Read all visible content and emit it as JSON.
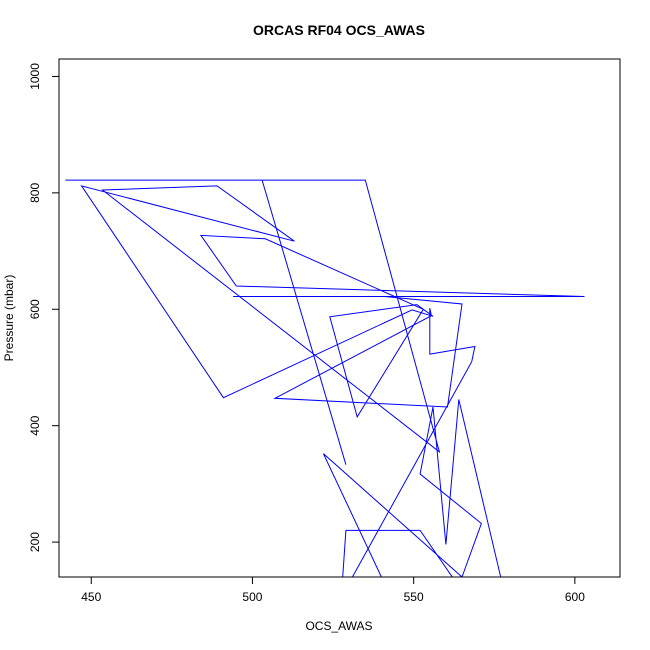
{
  "chart_data": {
    "type": "line",
    "title": "ORCAS RF04 OCS_AWAS",
    "xlabel": "OCS_AWAS",
    "ylabel": "Pressure (mbar)",
    "xlim": [
      440,
      614
    ],
    "ylim": [
      1030,
      140
    ],
    "y_reversed": true,
    "x_ticks": [
      450,
      500,
      550,
      600
    ],
    "y_ticks": [
      200,
      400,
      600,
      800,
      1000
    ],
    "grid": false,
    "line_color": "#0000ff",
    "marker": "open-circle",
    "x": [
      528.0,
      529.0,
      552.0,
      562.0,
      540.0,
      522.0,
      565.0,
      571.0,
      552.0,
      556.0,
      560.0,
      564.0,
      577.0,
      531.0,
      568.0,
      569.0,
      555.0,
      555.0,
      555.5,
      507.0,
      560.5,
      565.0,
      541.0,
      494.0,
      603.0,
      495.0,
      484.0,
      504.0,
      553.0,
      532.5,
      524.0,
      551.0,
      556.0,
      549.5,
      491.0,
      447.0,
      513.0,
      489.0,
      453.5,
      558.0,
      535.0,
      442.0,
      447.0,
      454.0,
      455.0,
      463.0,
      475.0,
      480.0,
      489.0,
      490.0,
      503.0,
      529.0
    ],
    "y": [
      140,
      220,
      220,
      140,
      140,
      352,
      140,
      232,
      317,
      432,
      196,
      445,
      140,
      140,
      510,
      536,
      523,
      602,
      589,
      447,
      432,
      609,
      622,
      622,
      622,
      640,
      727,
      721,
      600,
      415,
      587,
      608,
      588,
      599,
      448,
      812,
      717,
      812,
      805,
      355,
      822,
      822,
      822,
      822,
      822,
      822,
      822,
      822,
      822,
      822,
      822,
      333
    ]
  }
}
